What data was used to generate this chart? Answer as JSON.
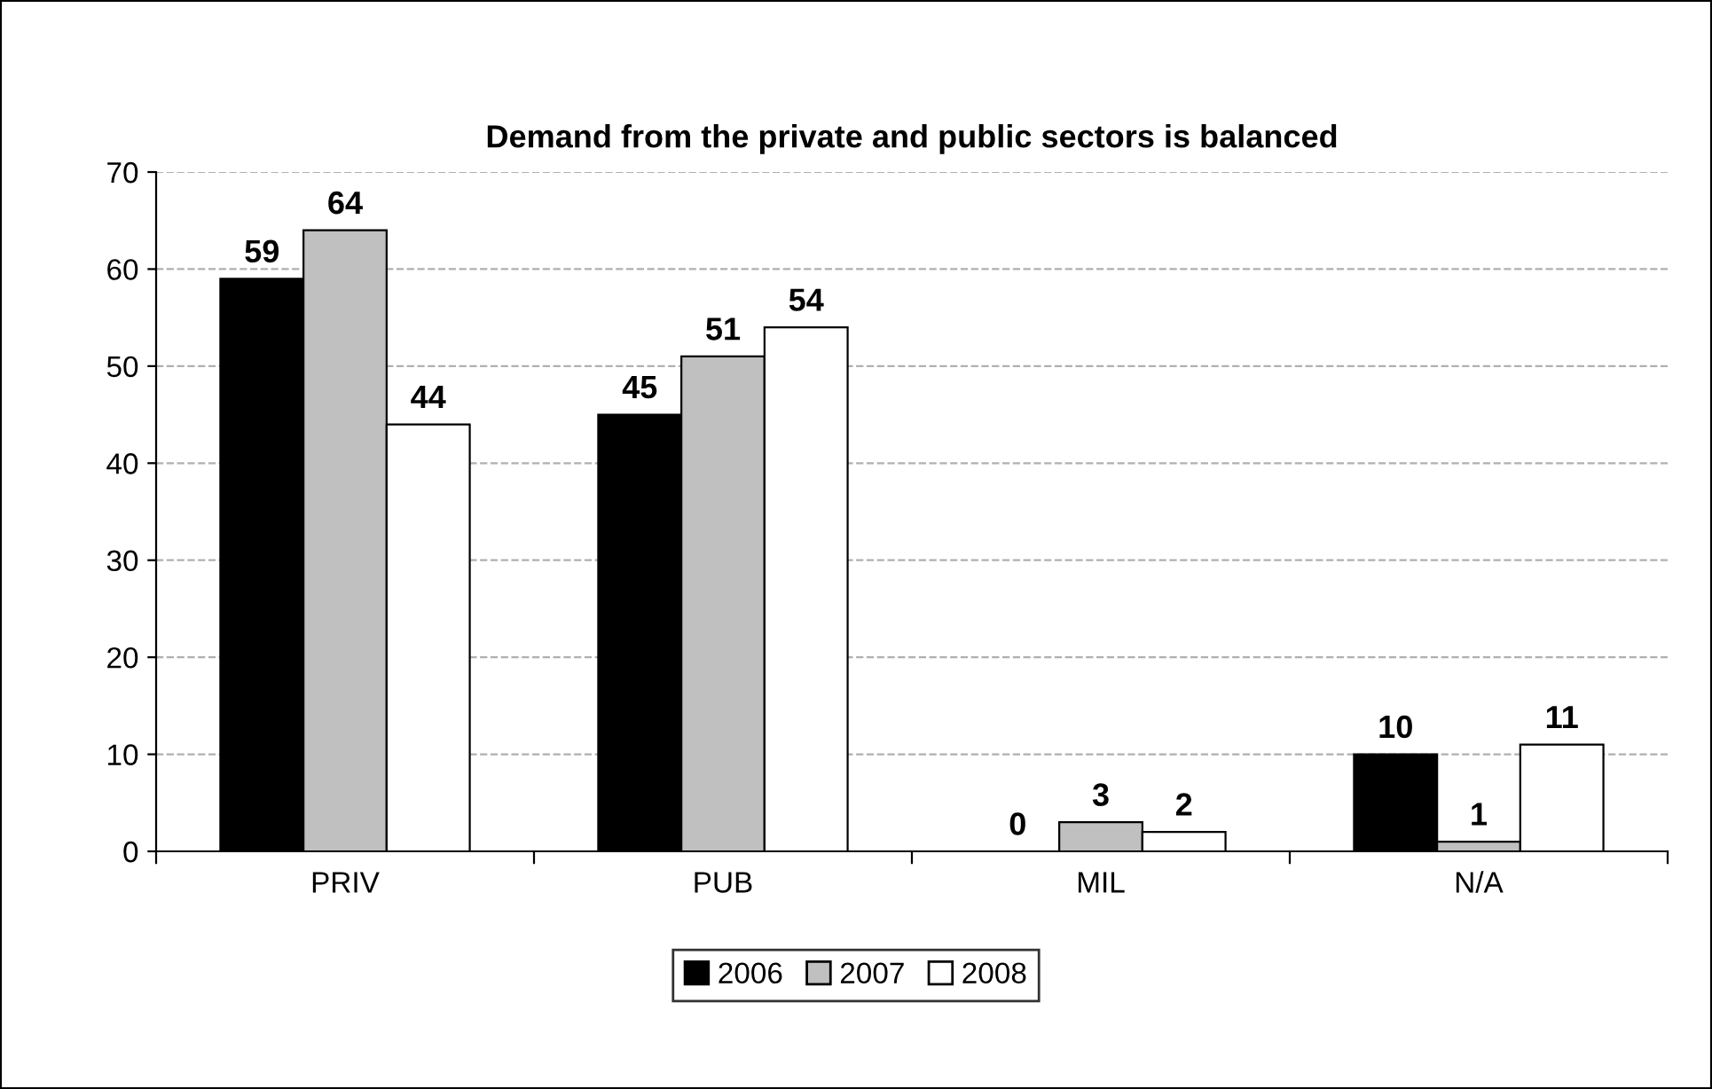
{
  "chart_data": {
    "type": "bar",
    "title": "Demand from the private and public sectors is balanced",
    "categories": [
      "PRIV",
      "PUB",
      "MIL",
      "N/A"
    ],
    "series": [
      {
        "name": "2006",
        "color": "#000000",
        "values": [
          59,
          45,
          0,
          10
        ]
      },
      {
        "name": "2007",
        "color": "#c0c0c0",
        "values": [
          64,
          51,
          3,
          1
        ]
      },
      {
        "name": "2008",
        "color": "#ffffff",
        "values": [
          44,
          54,
          2,
          11
        ]
      }
    ],
    "ylim": [
      0,
      70
    ],
    "yticks": [
      0,
      10,
      20,
      30,
      40,
      50,
      60,
      70
    ],
    "grid": "y",
    "legend": "bottom",
    "data_labels": true
  }
}
